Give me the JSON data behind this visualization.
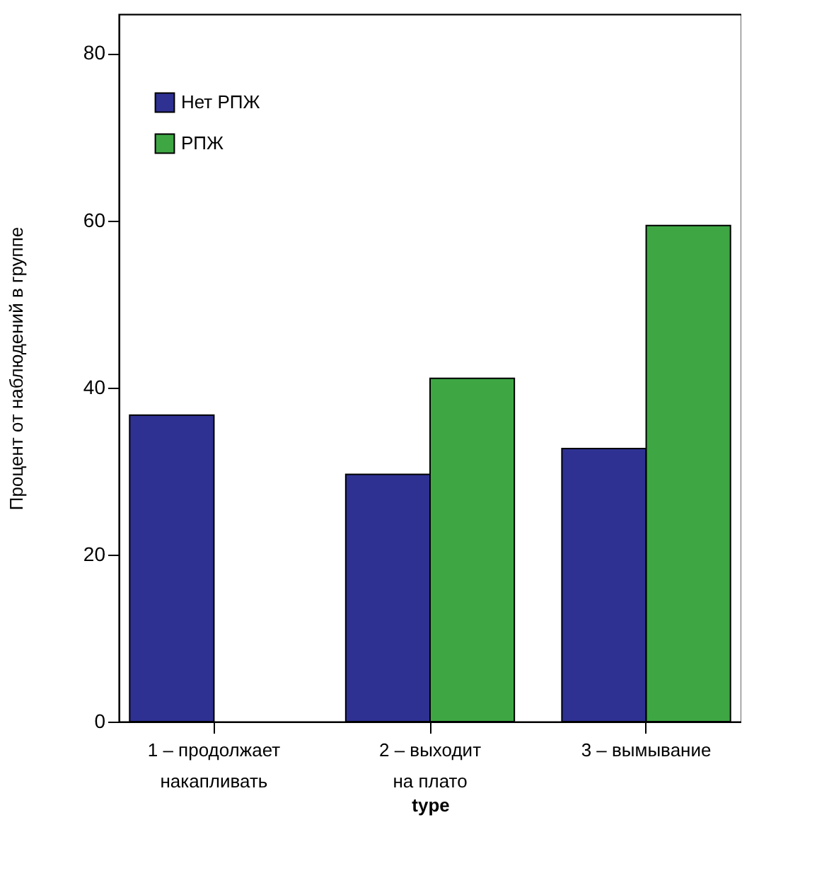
{
  "chart_data": {
    "type": "bar",
    "xlabel": "type",
    "ylabel": "Процент от наблюдений в группе",
    "categories": [
      "1 – продолжает\nнакапливать",
      "2 – выходит\nна плато",
      "3 – вымывание"
    ],
    "series": [
      {
        "name": "Нет РПЖ",
        "color": "#2e3192",
        "values": [
          36.7,
          29.6,
          32.7
        ]
      },
      {
        "name": "РПЖ",
        "color": "#3ea744",
        "values": [
          null,
          41.1,
          59.4
        ]
      }
    ],
    "ylim": [
      0,
      84.7
    ],
    "yticks": [
      0,
      20,
      40,
      60,
      80
    ],
    "grid": false,
    "legend": "top left"
  }
}
